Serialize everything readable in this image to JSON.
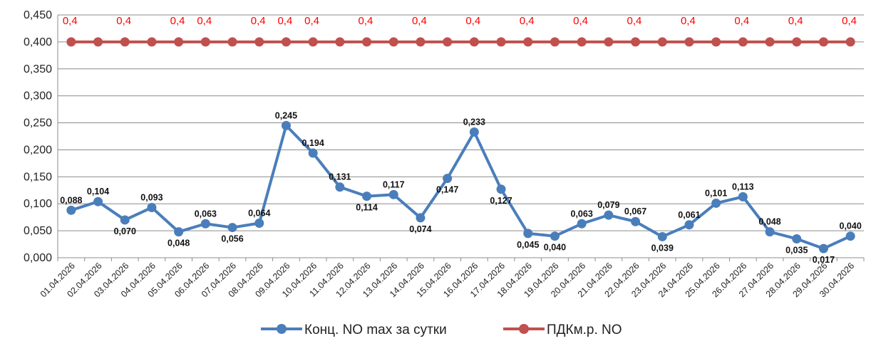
{
  "chart_data": {
    "type": "line",
    "title": "",
    "xlabel": "",
    "ylabel": "",
    "ylim": [
      0,
      0.45
    ],
    "y_ticks": [
      "0,000",
      "0,050",
      "0,100",
      "0,150",
      "0,200",
      "0,250",
      "0,300",
      "0,350",
      "0,400",
      "0,450"
    ],
    "grid": "horizontal",
    "legend_position": "bottom",
    "categories": [
      "01.04.2026",
      "02.04.2026",
      "03.04.2026",
      "04.04.2026",
      "05.04.2026",
      "06.04.2026",
      "07.04.2026",
      "08.04.2026",
      "09.04.2026",
      "10.04.2026",
      "11.04.2026",
      "12.04.2026",
      "13.04.2026",
      "14.04.2026",
      "15.04.2026",
      "16.04.2026",
      "17.04.2026",
      "18.04.2026",
      "19.04.2026",
      "20.04.2026",
      "21.04.2026",
      "22.04.2026",
      "23.04.2026",
      "24.04.2026",
      "25.04.2026",
      "26.04.2026",
      "27.04.2026",
      "28.04.2026",
      "29.04.2026",
      "30.04.2026"
    ],
    "series": [
      {
        "name": "Конц. NO max за сутки",
        "color": "#4a7ebb",
        "values": [
          0.088,
          0.104,
          0.07,
          0.093,
          0.048,
          0.063,
          0.056,
          0.064,
          0.245,
          0.194,
          0.131,
          0.114,
          0.117,
          0.074,
          0.147,
          0.233,
          0.127,
          0.045,
          0.04,
          0.063,
          0.079,
          0.067,
          0.039,
          0.061,
          0.101,
          0.113,
          0.048,
          0.035,
          0.017,
          0.04
        ],
        "labels": [
          "0,088",
          "0,104",
          "0,070",
          "0,093",
          "0,048",
          "0,063",
          "0,056",
          "0,064",
          "0,245",
          "0,194",
          "0,131",
          "0,114",
          "0,117",
          "0,074",
          "0,147",
          "0,233",
          "0,127",
          "0,045",
          "0,040",
          "0,063",
          "0,079",
          "0,067",
          "0,039",
          "0,061",
          "0,101",
          "0,113",
          "0,048",
          "0,035",
          "0,017",
          "0,040"
        ],
        "label_positions": [
          "above",
          "above",
          "below",
          "above",
          "below",
          "above",
          "below",
          "above",
          "above",
          "above",
          "above",
          "below",
          "above",
          "below",
          "below",
          "above",
          "below",
          "below",
          "below",
          "above",
          "above",
          "above",
          "below",
          "above",
          "above",
          "above",
          "above",
          "below",
          "below",
          "above"
        ]
      },
      {
        "name": "ПДКм.р. NO",
        "color": "#c0504d",
        "values": [
          0.4,
          0.4,
          0.4,
          0.4,
          0.4,
          0.4,
          0.4,
          0.4,
          0.4,
          0.4,
          0.4,
          0.4,
          0.4,
          0.4,
          0.4,
          0.4,
          0.4,
          0.4,
          0.4,
          0.4,
          0.4,
          0.4,
          0.4,
          0.4,
          0.4,
          0.4,
          0.4,
          0.4,
          0.4,
          0.4
        ],
        "labels": [
          "0,4",
          "",
          "0,4",
          "",
          "0,4",
          "0,4",
          "",
          "0,4",
          "0,4",
          "0,4",
          "",
          "0,4",
          "",
          "0,4",
          "",
          "0,4",
          "",
          "0,4",
          "",
          "0,4",
          "",
          "0,4",
          "",
          "0,4",
          "",
          "0,4",
          "",
          "0,4",
          "",
          "0,4"
        ],
        "label_color": "#ff0000"
      }
    ]
  }
}
